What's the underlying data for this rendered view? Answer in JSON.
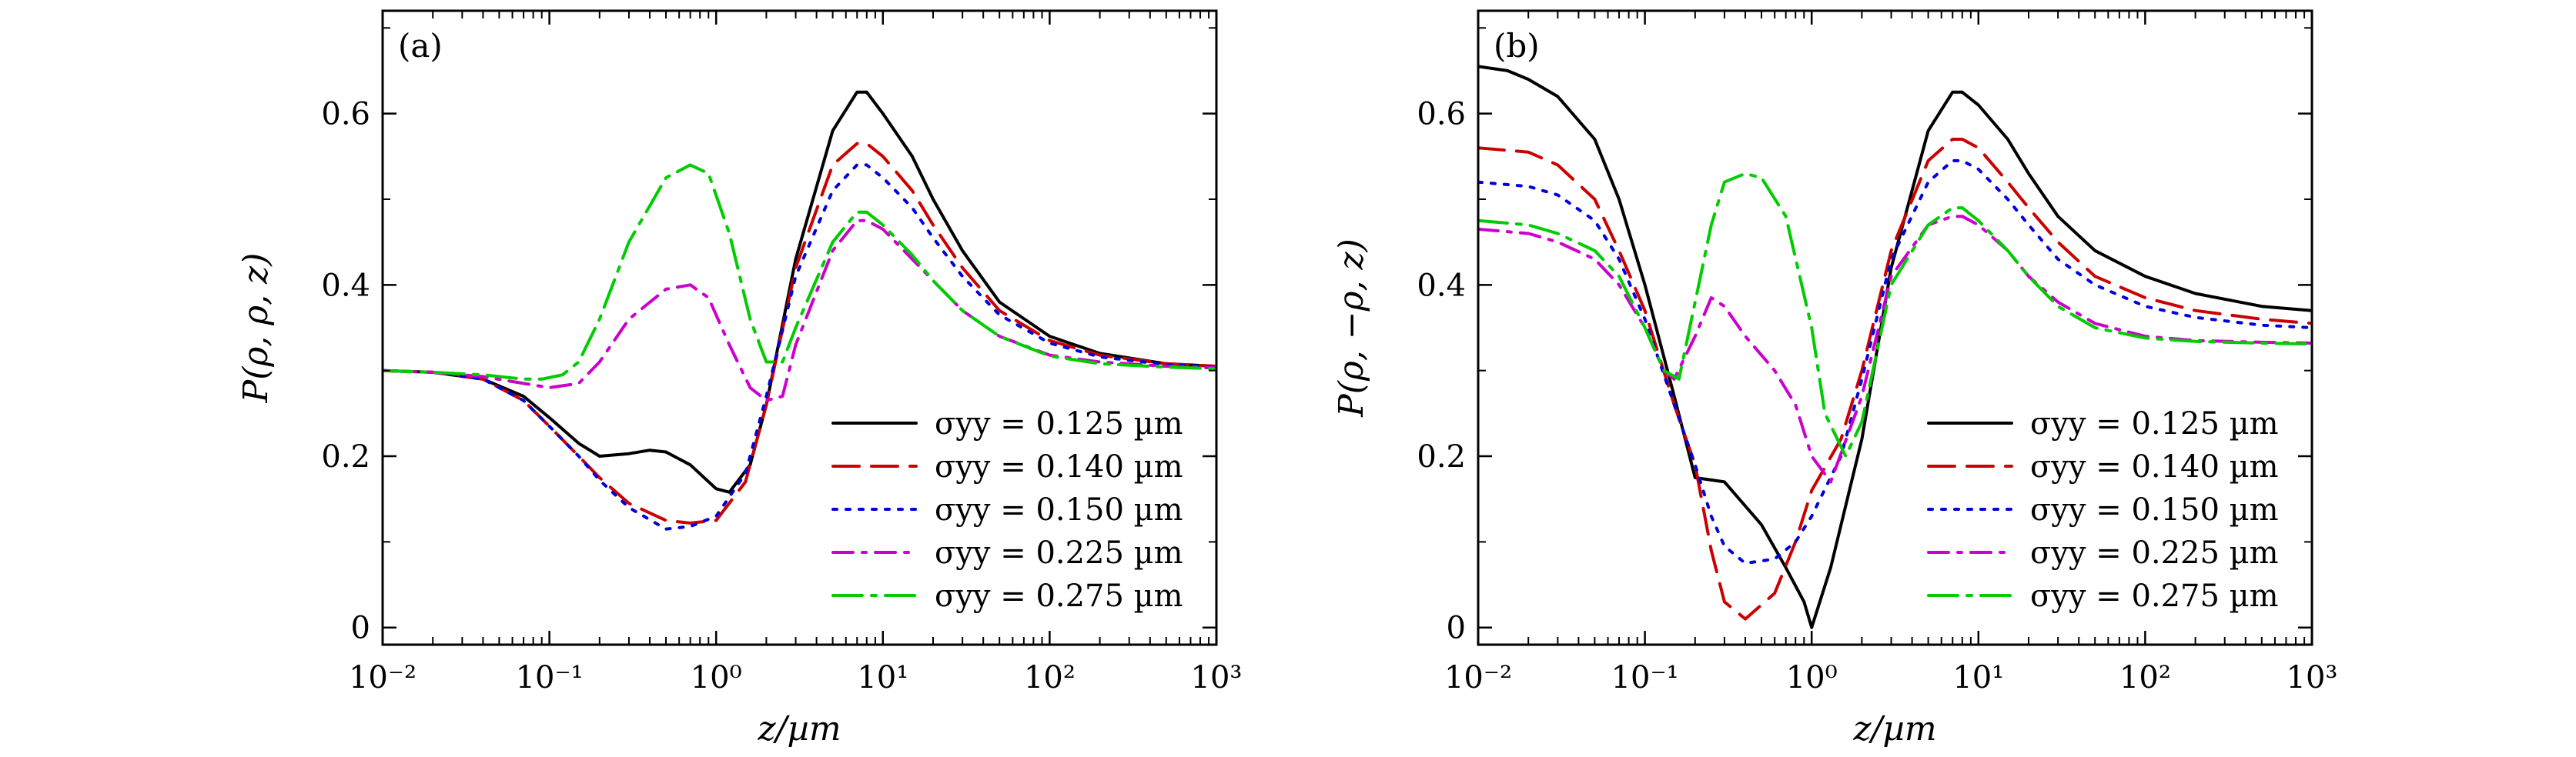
{
  "chart_data": [
    {
      "type": "line",
      "panel_label": "(a)",
      "xlabel": "z/µm",
      "ylabel": "P(ρ, ρ, z)",
      "xscale": "log",
      "xlim": [
        0.01,
        1000
      ],
      "ylim": [
        -0.02,
        0.72
      ],
      "xticks": [
        {
          "value": 0.01,
          "label": "10⁻²"
        },
        {
          "value": 0.1,
          "label": "10⁻¹"
        },
        {
          "value": 1,
          "label": "10⁰"
        },
        {
          "value": 10,
          "label": "10¹"
        },
        {
          "value": 100,
          "label": "10²"
        },
        {
          "value": 1000,
          "label": "10³"
        }
      ],
      "yticks": [
        {
          "value": 0,
          "label": "0"
        },
        {
          "value": 0.2,
          "label": "0.2"
        },
        {
          "value": 0.4,
          "label": "0.4"
        },
        {
          "value": 0.6,
          "label": "0.6"
        }
      ],
      "grid": false,
      "legend_position": "lower-right",
      "series": [
        {
          "name": "σyy = 0.125 µm",
          "color": "#000000",
          "dash": "solid",
          "x": [
            0.01,
            0.02,
            0.04,
            0.07,
            0.1,
            0.15,
            0.2,
            0.3,
            0.4,
            0.5,
            0.7,
            1.0,
            1.2,
            1.6,
            2.0,
            3.0,
            5.0,
            7.0,
            8.0,
            10,
            15,
            20,
            30,
            50,
            100,
            200,
            500,
            1000
          ],
          "y": [
            0.3,
            0.298,
            0.29,
            0.27,
            0.245,
            0.215,
            0.2,
            0.203,
            0.207,
            0.205,
            0.19,
            0.162,
            0.158,
            0.19,
            0.26,
            0.43,
            0.58,
            0.625,
            0.625,
            0.6,
            0.55,
            0.5,
            0.44,
            0.38,
            0.34,
            0.32,
            0.308,
            0.305
          ]
        },
        {
          "name": "σyy = 0.140 µm",
          "color": "#cc0000",
          "dash": "long-dash",
          "x": [
            0.01,
            0.02,
            0.04,
            0.07,
            0.1,
            0.15,
            0.2,
            0.3,
            0.5,
            0.7,
            1.0,
            1.5,
            2.0,
            3.0,
            5.0,
            7.0,
            8.0,
            10,
            15,
            20,
            30,
            50,
            100,
            200,
            500,
            1000
          ],
          "y": [
            0.3,
            0.298,
            0.29,
            0.265,
            0.235,
            0.2,
            0.175,
            0.145,
            0.125,
            0.122,
            0.125,
            0.17,
            0.26,
            0.42,
            0.54,
            0.565,
            0.565,
            0.55,
            0.51,
            0.47,
            0.42,
            0.37,
            0.335,
            0.318,
            0.308,
            0.305
          ]
        },
        {
          "name": "σyy = 0.150 µm",
          "color": "#0000dd",
          "dash": "dot",
          "x": [
            0.01,
            0.02,
            0.04,
            0.07,
            0.1,
            0.15,
            0.2,
            0.3,
            0.5,
            0.7,
            1.0,
            1.5,
            2.0,
            3.0,
            5.0,
            7.0,
            8.0,
            10,
            15,
            20,
            30,
            50,
            100,
            200,
            500,
            1000
          ],
          "y": [
            0.3,
            0.298,
            0.29,
            0.265,
            0.235,
            0.2,
            0.172,
            0.14,
            0.115,
            0.118,
            0.13,
            0.18,
            0.27,
            0.41,
            0.51,
            0.54,
            0.54,
            0.525,
            0.49,
            0.455,
            0.41,
            0.365,
            0.332,
            0.316,
            0.307,
            0.304
          ]
        },
        {
          "name": "σyy = 0.225 µm",
          "color": "#cc00cc",
          "dash": "dash-dot",
          "x": [
            0.01,
            0.02,
            0.04,
            0.07,
            0.1,
            0.15,
            0.2,
            0.3,
            0.5,
            0.7,
            0.9,
            1.2,
            1.6,
            2.0,
            2.5,
            3.0,
            5.0,
            7.0,
            8.0,
            10,
            15,
            20,
            30,
            50,
            100,
            200,
            500,
            1000
          ],
          "y": [
            0.3,
            0.298,
            0.293,
            0.285,
            0.28,
            0.285,
            0.31,
            0.36,
            0.395,
            0.4,
            0.385,
            0.33,
            0.28,
            0.265,
            0.27,
            0.33,
            0.44,
            0.475,
            0.475,
            0.465,
            0.43,
            0.405,
            0.37,
            0.34,
            0.318,
            0.31,
            0.305,
            0.303
          ]
        },
        {
          "name": "σyy = 0.275 µm",
          "color": "#00cc00",
          "dash": "long-dash-dot",
          "x": [
            0.01,
            0.02,
            0.04,
            0.07,
            0.09,
            0.12,
            0.15,
            0.2,
            0.3,
            0.5,
            0.7,
            0.9,
            1.2,
            1.6,
            2.0,
            2.5,
            3.0,
            5.0,
            7.0,
            8.0,
            10,
            15,
            20,
            30,
            50,
            100,
            200,
            500,
            1000
          ],
          "y": [
            0.3,
            0.298,
            0.295,
            0.29,
            0.29,
            0.295,
            0.31,
            0.36,
            0.45,
            0.525,
            0.54,
            0.53,
            0.46,
            0.36,
            0.31,
            0.31,
            0.35,
            0.45,
            0.485,
            0.485,
            0.47,
            0.435,
            0.405,
            0.37,
            0.34,
            0.317,
            0.308,
            0.304,
            0.302
          ]
        }
      ]
    },
    {
      "type": "line",
      "panel_label": "(b)",
      "xlabel": "z/µm",
      "ylabel": "P(ρ, −ρ, z)",
      "xscale": "log",
      "xlim": [
        0.01,
        1000
      ],
      "ylim": [
        -0.02,
        0.72
      ],
      "xticks": [
        {
          "value": 0.01,
          "label": "10⁻²"
        },
        {
          "value": 0.1,
          "label": "10⁻¹"
        },
        {
          "value": 1,
          "label": "10⁰"
        },
        {
          "value": 10,
          "label": "10¹"
        },
        {
          "value": 100,
          "label": "10²"
        },
        {
          "value": 1000,
          "label": "10³"
        }
      ],
      "yticks": [
        {
          "value": 0,
          "label": "0"
        },
        {
          "value": 0.2,
          "label": "0.2"
        },
        {
          "value": 0.4,
          "label": "0.4"
        },
        {
          "value": 0.6,
          "label": "0.6"
        }
      ],
      "grid": false,
      "legend_position": "lower-right",
      "series": [
        {
          "name": "σyy = 0.125 µm",
          "color": "#000000",
          "dash": "solid",
          "x": [
            0.01,
            0.015,
            0.02,
            0.03,
            0.05,
            0.07,
            0.1,
            0.15,
            0.2,
            0.3,
            0.5,
            0.7,
            0.9,
            1.0,
            1.3,
            2.0,
            3.0,
            5.0,
            7.0,
            8.0,
            10,
            15,
            20,
            30,
            50,
            100,
            200,
            500,
            1000
          ],
          "y": [
            0.655,
            0.65,
            0.64,
            0.62,
            0.57,
            0.5,
            0.4,
            0.27,
            0.175,
            0.17,
            0.12,
            0.07,
            0.03,
            0.0,
            0.07,
            0.22,
            0.42,
            0.58,
            0.625,
            0.625,
            0.61,
            0.57,
            0.53,
            0.48,
            0.44,
            0.41,
            0.39,
            0.375,
            0.37
          ]
        },
        {
          "name": "σyy = 0.140 µm",
          "color": "#cc0000",
          "dash": "long-dash",
          "x": [
            0.01,
            0.02,
            0.03,
            0.05,
            0.07,
            0.1,
            0.15,
            0.2,
            0.25,
            0.3,
            0.4,
            0.6,
            0.8,
            1.0,
            1.5,
            2.0,
            3.0,
            5.0,
            7.0,
            8.0,
            10,
            15,
            20,
            30,
            50,
            100,
            200,
            500,
            1000
          ],
          "y": [
            0.56,
            0.555,
            0.54,
            0.5,
            0.44,
            0.37,
            0.26,
            0.19,
            0.09,
            0.03,
            0.01,
            0.04,
            0.1,
            0.16,
            0.22,
            0.3,
            0.44,
            0.545,
            0.57,
            0.57,
            0.56,
            0.52,
            0.49,
            0.45,
            0.41,
            0.385,
            0.37,
            0.36,
            0.355
          ]
        },
        {
          "name": "σyy = 0.150 µm",
          "color": "#0000dd",
          "dash": "dot",
          "x": [
            0.01,
            0.02,
            0.03,
            0.05,
            0.07,
            0.1,
            0.15,
            0.2,
            0.25,
            0.3,
            0.4,
            0.6,
            0.8,
            1.0,
            1.5,
            2.0,
            3.0,
            5.0,
            7.0,
            8.0,
            10,
            15,
            20,
            30,
            50,
            100,
            200,
            500,
            1000
          ],
          "y": [
            0.52,
            0.515,
            0.505,
            0.475,
            0.43,
            0.36,
            0.26,
            0.19,
            0.13,
            0.095,
            0.075,
            0.08,
            0.1,
            0.13,
            0.2,
            0.29,
            0.43,
            0.52,
            0.545,
            0.545,
            0.535,
            0.5,
            0.47,
            0.43,
            0.4,
            0.375,
            0.362,
            0.353,
            0.35
          ]
        },
        {
          "name": "σyy = 0.225 µm",
          "color": "#cc00cc",
          "dash": "dash-dot",
          "x": [
            0.01,
            0.02,
            0.03,
            0.05,
            0.07,
            0.1,
            0.13,
            0.15,
            0.2,
            0.25,
            0.3,
            0.4,
            0.6,
            0.8,
            1.0,
            1.3,
            2.0,
            3.0,
            5.0,
            7.0,
            8.0,
            10,
            15,
            20,
            30,
            50,
            100,
            200,
            500,
            1000
          ],
          "y": [
            0.465,
            0.46,
            0.45,
            0.43,
            0.4,
            0.35,
            0.3,
            0.29,
            0.34,
            0.385,
            0.375,
            0.34,
            0.3,
            0.26,
            0.2,
            0.17,
            0.27,
            0.41,
            0.47,
            0.48,
            0.48,
            0.47,
            0.44,
            0.41,
            0.38,
            0.355,
            0.34,
            0.335,
            0.333,
            0.332
          ]
        },
        {
          "name": "σyy = 0.275 µm",
          "color": "#00cc00",
          "dash": "long-dash-dot",
          "x": [
            0.01,
            0.02,
            0.03,
            0.05,
            0.07,
            0.1,
            0.13,
            0.16,
            0.2,
            0.25,
            0.3,
            0.4,
            0.5,
            0.7,
            1.0,
            1.2,
            1.6,
            2.0,
            3.0,
            5.0,
            7.0,
            8.0,
            10,
            15,
            20,
            30,
            50,
            100,
            200,
            500,
            1000
          ],
          "y": [
            0.475,
            0.47,
            0.46,
            0.44,
            0.41,
            0.35,
            0.3,
            0.29,
            0.38,
            0.47,
            0.52,
            0.53,
            0.525,
            0.48,
            0.35,
            0.25,
            0.2,
            0.24,
            0.4,
            0.47,
            0.49,
            0.49,
            0.475,
            0.44,
            0.41,
            0.375,
            0.35,
            0.338,
            0.334,
            0.332,
            0.331
          ]
        }
      ]
    }
  ]
}
